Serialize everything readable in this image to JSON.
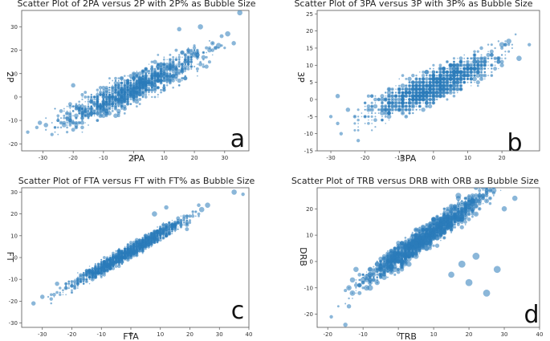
{
  "chart_data": [
    {
      "type": "scatter",
      "title": "Scatter Plot of 2PA versus 2P with 2P% as Bubble Size",
      "xlabel": "2PA",
      "ylabel": "2P",
      "panel_label": "a",
      "xlim": [
        -37,
        38
      ],
      "ylim": [
        -23,
        37
      ],
      "xticks": [
        -30,
        -20,
        -10,
        0,
        10,
        20,
        30
      ],
      "yticks": [
        -20,
        -10,
        0,
        10,
        20,
        30
      ],
      "trend": {
        "slope": 0.6,
        "intercept": 4,
        "spread": 4.5
      },
      "x_range": [
        -33,
        33
      ],
      "size_range": [
        0.6,
        2.8
      ],
      "series": [
        {
          "name": "2P% (bubble size)",
          "points": [
            [
              -35,
              -15,
              1
            ],
            [
              -32,
              -13,
              1
            ],
            [
              -20,
              5,
              1.5
            ],
            [
              20,
              18,
              2
            ],
            [
              28,
              22,
              2
            ],
            [
              31,
              27,
              2
            ],
            [
              33,
              23,
              1.5
            ],
            [
              35,
              36,
              2
            ],
            [
              15,
              29,
              1.5
            ],
            [
              22,
              30,
              2
            ]
          ]
        }
      ]
    },
    {
      "type": "scatter",
      "title": "Scatter Plot of 3PA versus 3P with 3P% as Bubble Size",
      "xlabel": "3PA",
      "ylabel": "3P",
      "panel_label": "b",
      "xlim": [
        -34,
        31
      ],
      "ylim": [
        -15,
        26
      ],
      "xticks": [
        -30,
        -20,
        -10,
        0,
        10,
        20
      ],
      "yticks": [
        -15,
        -10,
        -5,
        0,
        5,
        10,
        15,
        20,
        25
      ],
      "trend": {
        "slope": 0.42,
        "intercept": 4,
        "spread": 3.2
      },
      "x_range": [
        -27,
        27
      ],
      "size_range": [
        0.6,
        2.8
      ],
      "series": [
        {
          "name": "3P% (bubble size)",
          "points": [
            [
              -30,
              -5,
              1
            ],
            [
              -28,
              -7,
              1
            ],
            [
              -27,
              -10,
              1
            ],
            [
              -25,
              -3,
              1.5
            ],
            [
              -22,
              -12,
              1
            ],
            [
              20,
              16,
              2
            ],
            [
              22,
              17,
              2
            ],
            [
              25,
              12,
              2
            ],
            [
              28,
              16,
              1
            ],
            [
              -28,
              1,
              1.5
            ]
          ]
        }
      ]
    },
    {
      "type": "scatter",
      "title": "Scatter Plot of FTA versus FT with FT% as Bubble Size",
      "xlabel": "FTA",
      "ylabel": "FT",
      "panel_label": "c",
      "xlim": [
        -37,
        40
      ],
      "ylim": [
        -32,
        32
      ],
      "xticks": [
        -30,
        -20,
        -10,
        0,
        10,
        20,
        30,
        40
      ],
      "yticks": [
        -30,
        -20,
        -10,
        0,
        10,
        20,
        30
      ],
      "trend": {
        "slope": 0.78,
        "intercept": 3,
        "spread": 2.2
      },
      "x_range": [
        -30,
        28
      ],
      "size_range": [
        0.6,
        2.6
      ],
      "series": [
        {
          "name": "FT% (bubble size)",
          "points": [
            [
              -33,
              -21,
              1.5
            ],
            [
              -30,
              -18,
              1.5
            ],
            [
              -25,
              -12,
              1.5
            ],
            [
              24,
              22,
              2
            ],
            [
              26,
              24,
              2
            ],
            [
              35,
              30,
              2
            ],
            [
              38,
              29,
              1
            ],
            [
              8,
              20,
              2
            ],
            [
              12,
              23,
              1.5
            ]
          ]
        }
      ]
    },
    {
      "type": "scatter",
      "title": "Scatter Plot of TRB versus DRB with ORB as Bubble Size",
      "xlabel": "TRB",
      "ylabel": "DRB",
      "panel_label": "d",
      "xlim": [
        -23,
        40
      ],
      "ylim": [
        -25,
        28
      ],
      "xticks": [
        -20,
        -10,
        0,
        10,
        20,
        30,
        40
      ],
      "yticks": [
        -20,
        -10,
        0,
        10,
        20
      ],
      "trend": {
        "slope": 0.95,
        "intercept": 2,
        "spread": 3.2
      },
      "x_range": [
        -18,
        33
      ],
      "size_range": [
        0.6,
        3.5
      ],
      "series": [
        {
          "name": "ORB (bubble size)",
          "points": [
            [
              -19,
              -21,
              1
            ],
            [
              -15,
              -24,
              1.5
            ],
            [
              -14,
              -17,
              1.5
            ],
            [
              20,
              -8,
              3
            ],
            [
              25,
              -12,
              3
            ],
            [
              28,
              -3,
              3
            ],
            [
              18,
              -1,
              3
            ],
            [
              30,
              20,
              2
            ],
            [
              33,
              24,
              2
            ],
            [
              27,
              26,
              1
            ],
            [
              15,
              -5,
              2.5
            ],
            [
              22,
              2,
              3
            ]
          ]
        }
      ]
    }
  ]
}
